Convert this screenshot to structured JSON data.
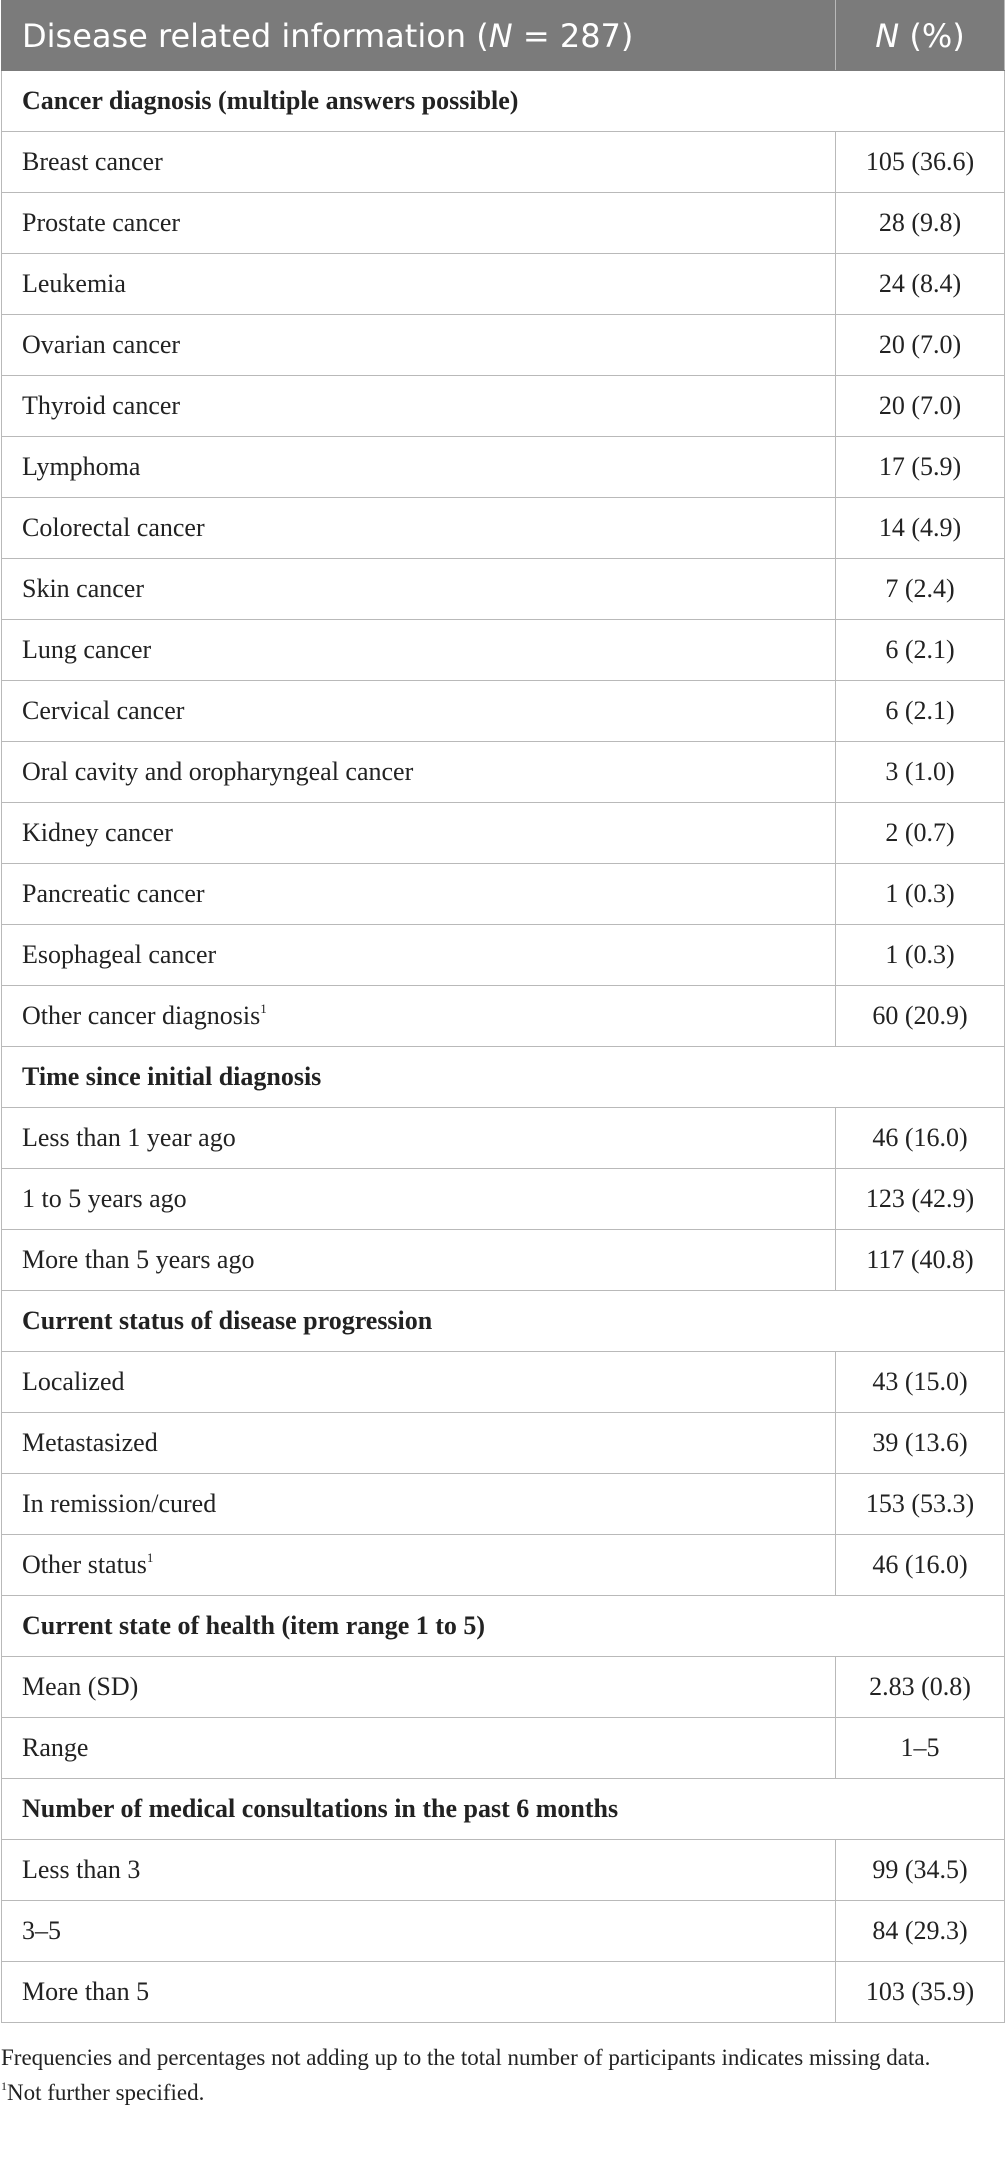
{
  "table": {
    "header": {
      "col1_text": "Disease related information (",
      "col1_n": "N",
      "col1_rest": " = 287)",
      "col2_n": "N",
      "col2_rest": " (%)"
    },
    "rows": [
      {
        "type": "section",
        "label": "Cancer diagnosis (multiple answers possible)"
      },
      {
        "type": "data",
        "label": "Breast cancer",
        "value": "105 (36.6)"
      },
      {
        "type": "data",
        "label": "Prostate cancer",
        "value": "28 (9.8)"
      },
      {
        "type": "data",
        "label": "Leukemia",
        "value": "24 (8.4)"
      },
      {
        "type": "data",
        "label": "Ovarian cancer",
        "value": "20 (7.0)"
      },
      {
        "type": "data",
        "label": "Thyroid cancer",
        "value": "20 (7.0)"
      },
      {
        "type": "data",
        "label": "Lymphoma",
        "value": "17 (5.9)"
      },
      {
        "type": "data",
        "label": "Colorectal cancer",
        "value": "14 (4.9)"
      },
      {
        "type": "data",
        "label": "Skin cancer",
        "value": "7 (2.4)"
      },
      {
        "type": "data",
        "label": "Lung cancer",
        "value": "6 (2.1)"
      },
      {
        "type": "data",
        "label": "Cervical cancer",
        "value": "6 (2.1)"
      },
      {
        "type": "data",
        "label": "Oral cavity and oropharyngeal cancer",
        "value": "3 (1.0)"
      },
      {
        "type": "data",
        "label": "Kidney cancer",
        "value": "2 (0.7)"
      },
      {
        "type": "data",
        "label": "Pancreatic cancer",
        "value": "1 (0.3)"
      },
      {
        "type": "data",
        "label": "Esophageal cancer",
        "value": "1 (0.3)"
      },
      {
        "type": "data",
        "label": "Other cancer diagnosis",
        "sup": "1",
        "value": "60 (20.9)"
      },
      {
        "type": "section",
        "label": "Time since initial diagnosis"
      },
      {
        "type": "data",
        "label": "Less than 1 year ago",
        "value": "46 (16.0)"
      },
      {
        "type": "data",
        "label": "1 to 5 years ago",
        "value": "123 (42.9)"
      },
      {
        "type": "data",
        "label": "More than 5 years ago",
        "value": "117 (40.8)"
      },
      {
        "type": "section",
        "label": "Current status of disease progression"
      },
      {
        "type": "data",
        "label": "Localized",
        "value": "43 (15.0)"
      },
      {
        "type": "data",
        "label": "Metastasized",
        "value": "39 (13.6)"
      },
      {
        "type": "data",
        "label": "In remission/cured",
        "value": "153 (53.3)"
      },
      {
        "type": "data",
        "label": "Other status",
        "sup": "1",
        "value": "46 (16.0)"
      },
      {
        "type": "section",
        "label": "Current state of health (item range 1 to 5)"
      },
      {
        "type": "data",
        "label": "Mean (SD)",
        "value": "2.83 (0.8)"
      },
      {
        "type": "data",
        "label": "Range",
        "value": "1–5"
      },
      {
        "type": "section",
        "label": "Number of medical consultations in the past 6 months"
      },
      {
        "type": "data",
        "label": "Less than 3",
        "value": "99 (34.5)"
      },
      {
        "type": "data",
        "label": "3–5",
        "value": "84 (29.3)"
      },
      {
        "type": "data",
        "label": "More than 5",
        "value": "103 (35.9)"
      }
    ]
  },
  "footnotes": {
    "note": "Frequencies and percentages not adding up to the total number of participants indicates missing data.",
    "sup1_mark": "1",
    "sup1_text": "Not further specified."
  },
  "colors": {
    "header_bg": "#7b7b7b",
    "border": "#b9b9b9",
    "text": "#222222"
  }
}
